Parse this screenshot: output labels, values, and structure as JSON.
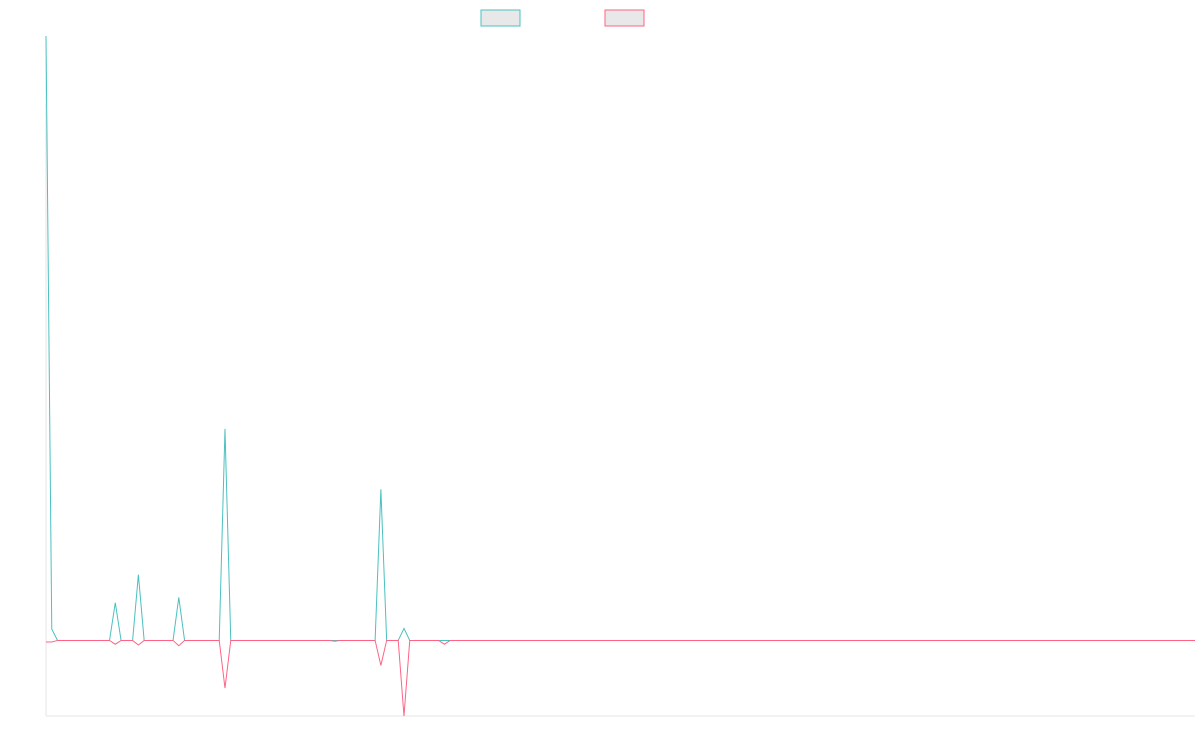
{
  "chart_data": {
    "type": "line",
    "title": "",
    "xlabel": "",
    "ylabel": "",
    "grid": false,
    "legend": {
      "placement": "top-center",
      "entries": [
        {
          "label": "",
          "color": "#4bc0c0"
        },
        {
          "label": "",
          "color": "#ff6384"
        }
      ]
    },
    "ylim": [
      -10,
      80
    ],
    "x_count": 200,
    "series": [
      {
        "color": "#4bc0c0",
        "fill": false,
        "points": [
          [
            0,
            80
          ],
          [
            1,
            1.5
          ],
          [
            2,
            0
          ],
          [
            11,
            0
          ],
          [
            12,
            5
          ],
          [
            13,
            0
          ],
          [
            15,
            0
          ],
          [
            16,
            8.7
          ],
          [
            17,
            0
          ],
          [
            22,
            0
          ],
          [
            23,
            5.7
          ],
          [
            24,
            0
          ],
          [
            30,
            0
          ],
          [
            31,
            28
          ],
          [
            32,
            0
          ],
          [
            57,
            0
          ],
          [
            58,
            20
          ],
          [
            59,
            0
          ],
          [
            61,
            0
          ],
          [
            62,
            1.6
          ],
          [
            63,
            0
          ],
          [
            199,
            0
          ]
        ]
      },
      {
        "color": "#ff6384",
        "fill": false,
        "points": [
          [
            0,
            -0.2
          ],
          [
            1,
            -0.2
          ],
          [
            2,
            0
          ],
          [
            11,
            0
          ],
          [
            12,
            -0.5
          ],
          [
            13,
            0
          ],
          [
            15,
            0
          ],
          [
            16,
            -0.6
          ],
          [
            17,
            0
          ],
          [
            22,
            0
          ],
          [
            23,
            -0.7
          ],
          [
            24,
            0
          ],
          [
            30,
            0
          ],
          [
            31,
            -6.3
          ],
          [
            32,
            0
          ],
          [
            49,
            0
          ],
          [
            50,
            -0.1
          ],
          [
            51,
            0
          ],
          [
            57,
            0
          ],
          [
            58,
            -3.3
          ],
          [
            59,
            0
          ],
          [
            61,
            0
          ],
          [
            62,
            -10
          ],
          [
            63,
            0
          ],
          [
            68,
            0
          ],
          [
            69,
            -0.5
          ],
          [
            70,
            0
          ],
          [
            199,
            0
          ]
        ]
      }
    ]
  }
}
